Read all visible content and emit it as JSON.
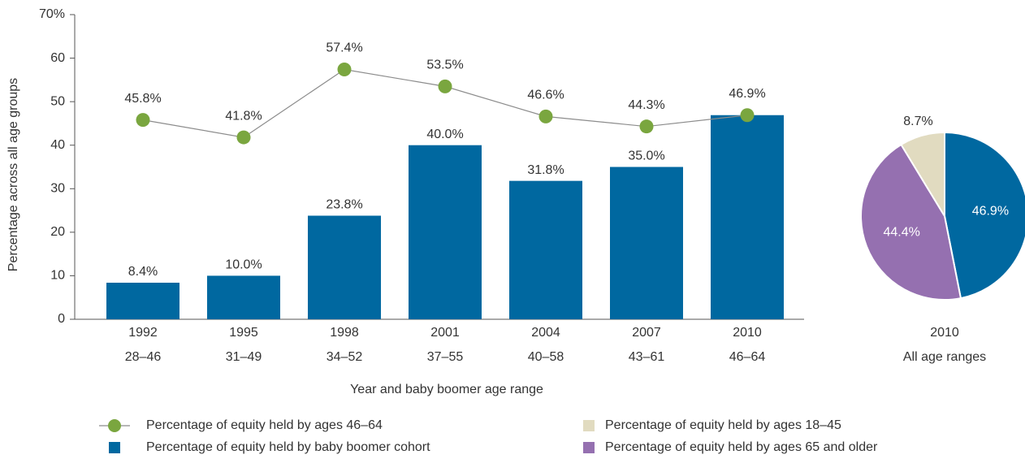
{
  "chart_data": [
    {
      "type": "combo",
      "x_label": "Year and baby boomer age range",
      "y_label": "Percentage across all age groups",
      "categories": [
        "1992",
        "1995",
        "1998",
        "2001",
        "2004",
        "2007",
        "2010"
      ],
      "category_sublabels": [
        "28–46",
        "31–49",
        "34–52",
        "37–55",
        "40–58",
        "43–61",
        "46–64"
      ],
      "ylim": [
        0,
        70
      ],
      "yticks": [
        0,
        10,
        20,
        30,
        40,
        50,
        60,
        {
          "value": 70,
          "label": "70%"
        }
      ],
      "series": [
        {
          "name": "Percentage of equity held by ages 46–64",
          "type": "line",
          "color": "#7aa63f",
          "line_color": "#8c8c8c",
          "values": [
            45.8,
            41.8,
            57.4,
            53.5,
            46.6,
            44.3,
            46.9
          ],
          "value_labels": [
            "45.8%",
            "41.8%",
            "57.4%",
            "53.5%",
            "46.6%",
            "44.3%",
            "46.9%"
          ]
        },
        {
          "name": "Percentage of equity held by baby boomer cohort",
          "type": "bar",
          "color": "#0068a0",
          "values": [
            8.4,
            10.0,
            23.8,
            40.0,
            31.8,
            35.0,
            46.9
          ],
          "value_labels": [
            "8.4%",
            "10.0%",
            "23.8%",
            "40.0%",
            "31.8%",
            "35.0%",
            null
          ]
        }
      ]
    },
    {
      "type": "pie",
      "x_label": "2010",
      "subtitle": "All age ranges",
      "categories": [
        null,
        "Percentage of equity held by ages 65 and older",
        "Percentage of equity held by ages 18–45"
      ],
      "values": [
        46.9,
        44.4,
        8.7
      ],
      "value_labels": [
        "46.9%",
        "44.4%",
        "8.7%"
      ],
      "colors": [
        "#0068a0",
        "#9570b0",
        "#e1dbc0"
      ]
    }
  ]
}
